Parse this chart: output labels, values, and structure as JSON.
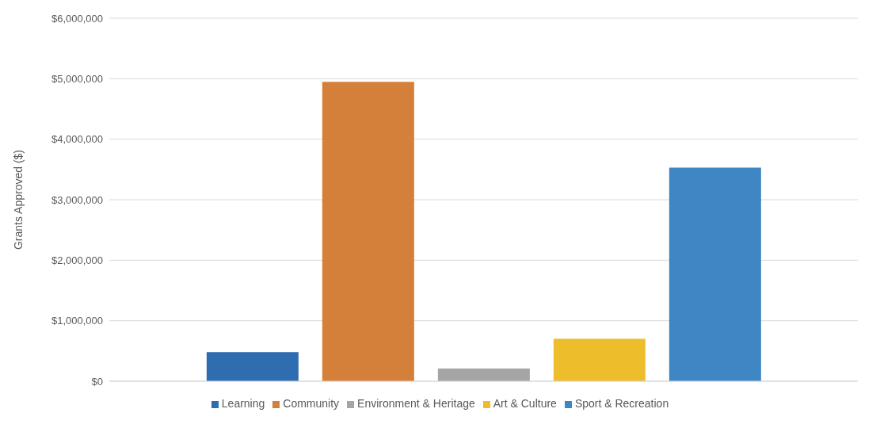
{
  "chart_data": {
    "type": "bar",
    "ylabel": "Grants Approved ($)",
    "categories": [
      null
    ],
    "series": [
      {
        "name": "Learning",
        "color": "#2e6db0",
        "values": [
          480000
        ]
      },
      {
        "name": "Community",
        "color": "#d5803a",
        "values": [
          4950000
        ]
      },
      {
        "name": "Environment & Heritage",
        "color": "#a5a5a5",
        "values": [
          210000
        ]
      },
      {
        "name": "Art & Culture",
        "color": "#edbd2c",
        "values": [
          700000
        ]
      },
      {
        "name": "Sport & Recreation",
        "color": "#3f87c4",
        "values": [
          3530000
        ]
      }
    ],
    "ylim": [
      0,
      6000000
    ],
    "yticks": [
      {
        "value": 0,
        "label": "$0"
      },
      {
        "value": 1000000,
        "label": "$1,000,000"
      },
      {
        "value": 2000000,
        "label": "$2,000,000"
      },
      {
        "value": 3000000,
        "label": "$3,000,000"
      },
      {
        "value": 4000000,
        "label": "$4,000,000"
      },
      {
        "value": 5000000,
        "label": "$5,000,000"
      },
      {
        "value": 6000000,
        "label": "$6,000,000"
      }
    ],
    "grid": "y",
    "legend": "bottom"
  }
}
